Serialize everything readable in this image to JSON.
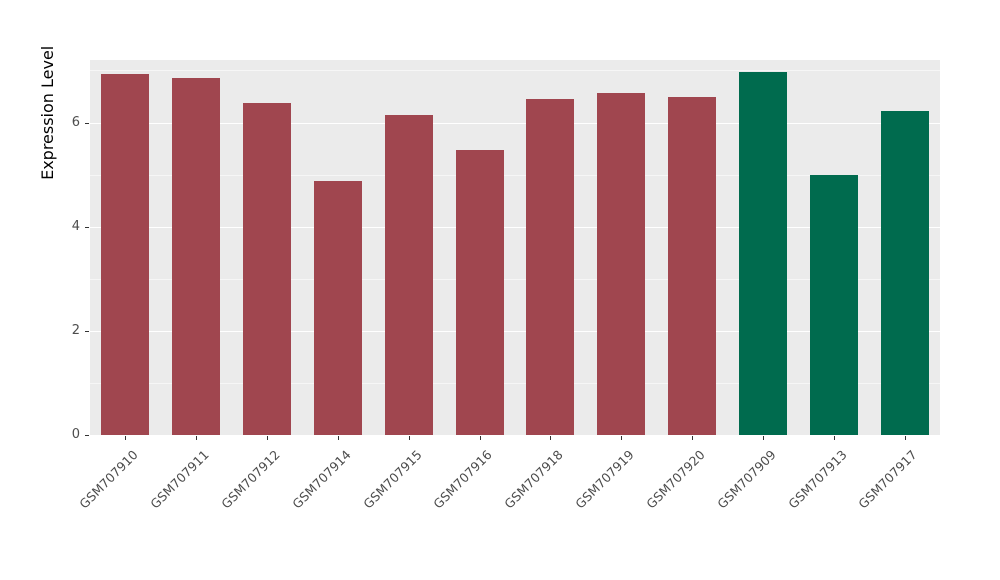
{
  "chart_data": {
    "type": "bar",
    "title": "",
    "xlabel": "",
    "ylabel": "Expression Level",
    "categories": [
      "GSM707910",
      "GSM707911",
      "GSM707912",
      "GSM707914",
      "GSM707915",
      "GSM707916",
      "GSM707918",
      "GSM707919",
      "GSM707920",
      "GSM707909",
      "GSM707913",
      "GSM707917"
    ],
    "values": [
      6.94,
      6.86,
      6.37,
      4.87,
      6.15,
      5.48,
      6.45,
      6.56,
      6.49,
      6.97,
      4.99,
      6.22
    ],
    "groups": [
      "red",
      "red",
      "red",
      "red",
      "red",
      "red",
      "red",
      "red",
      "red",
      "green",
      "green",
      "green"
    ],
    "group_colors": {
      "red": "#A0464F",
      "green": "#006B4E"
    },
    "ylim": [
      0,
      7.2
    ],
    "yticks": [
      0,
      2,
      4,
      6
    ],
    "yticks_minor": [
      1,
      3,
      5,
      7
    ],
    "grid": "on",
    "legend_position": "none",
    "panel_background": "#EBEBEB"
  }
}
